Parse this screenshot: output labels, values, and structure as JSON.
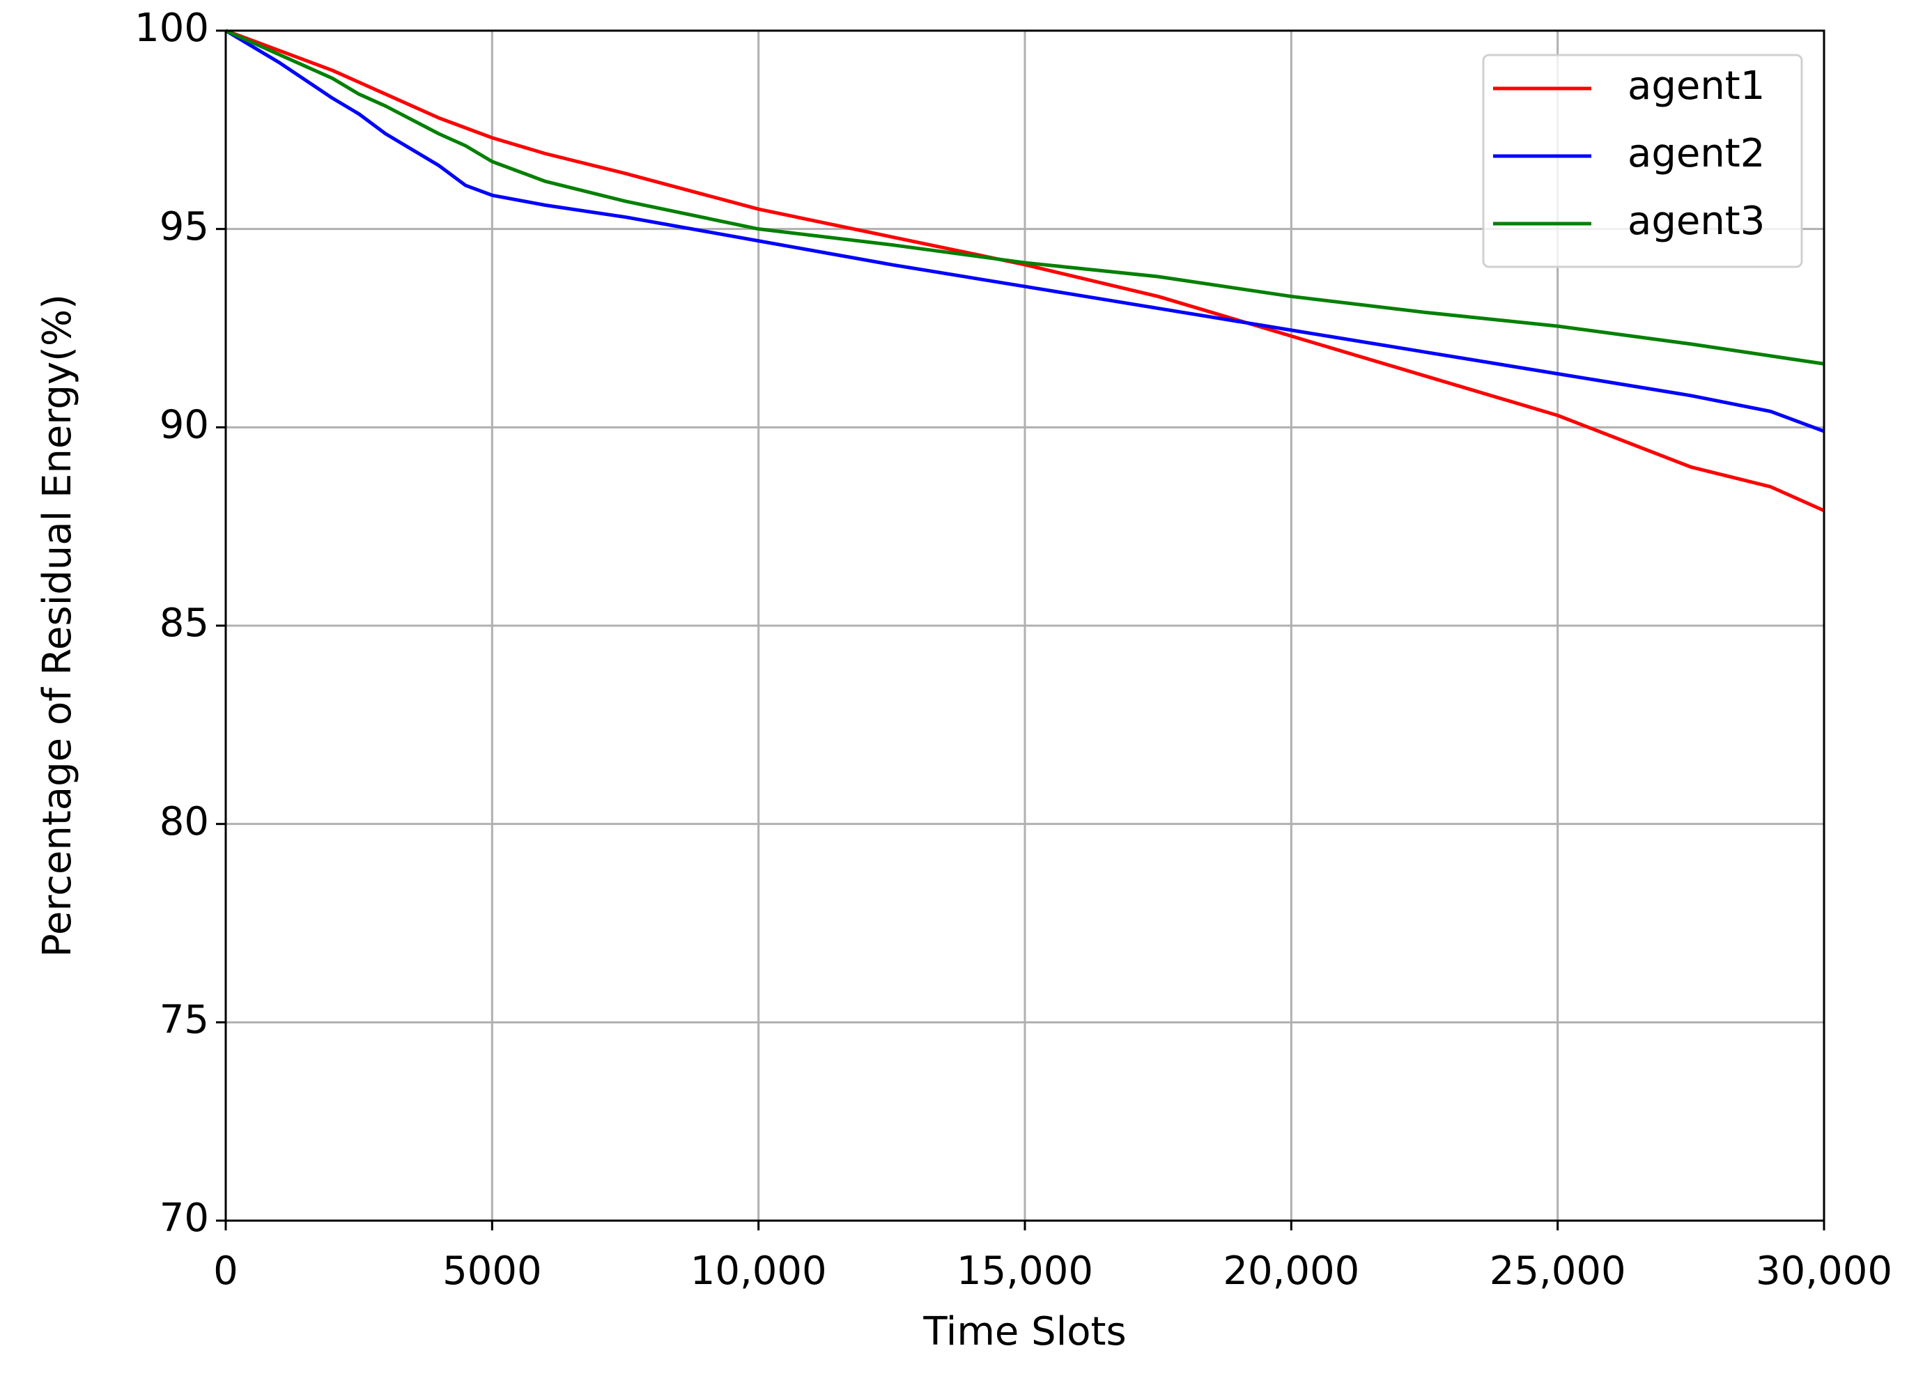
{
  "chart_data": {
    "type": "line",
    "xlabel": "Time Slots",
    "ylabel": "Percentage of Residual Energy(%)",
    "x": [
      0,
      1000,
      2000,
      2500,
      3000,
      4000,
      4500,
      5000,
      6000,
      7500,
      10000,
      12500,
      15000,
      17500,
      20000,
      22500,
      25000,
      27500,
      29000,
      30000
    ],
    "series": [
      {
        "name": "agent1",
        "color": "#ff0000",
        "values": [
          100,
          99.5,
          99.0,
          98.7,
          98.4,
          97.8,
          97.55,
          97.3,
          96.9,
          96.4,
          95.5,
          94.8,
          94.1,
          93.3,
          92.3,
          91.3,
          90.3,
          89.0,
          88.5,
          87.9
        ]
      },
      {
        "name": "agent2",
        "color": "#0000ff",
        "values": [
          100,
          99.2,
          98.3,
          97.9,
          97.4,
          96.6,
          96.1,
          95.85,
          95.6,
          95.3,
          94.7,
          94.1,
          93.55,
          93.0,
          92.45,
          91.9,
          91.35,
          90.8,
          90.4,
          89.9
        ]
      },
      {
        "name": "agent3",
        "color": "#008000",
        "values": [
          100,
          99.4,
          98.8,
          98.4,
          98.1,
          97.4,
          97.1,
          96.7,
          96.2,
          95.7,
          95.0,
          94.6,
          94.15,
          93.8,
          93.3,
          92.9,
          92.55,
          92.1,
          91.8,
          91.6
        ]
      }
    ],
    "xlim": [
      0,
      30000
    ],
    "xticks": [
      0,
      5000,
      {
        "value": 10000,
        "label": "10,000"
      },
      {
        "value": 15000,
        "label": "15,000"
      },
      {
        "value": 20000,
        "label": "20,000"
      },
      {
        "value": 25000,
        "label": "25,000"
      },
      {
        "value": 30000,
        "label": "30,000"
      }
    ],
    "ylim": [
      70,
      100
    ],
    "yticks": [
      70,
      75,
      80,
      85,
      90,
      95,
      100
    ],
    "grid": true,
    "legend": "upper right"
  }
}
